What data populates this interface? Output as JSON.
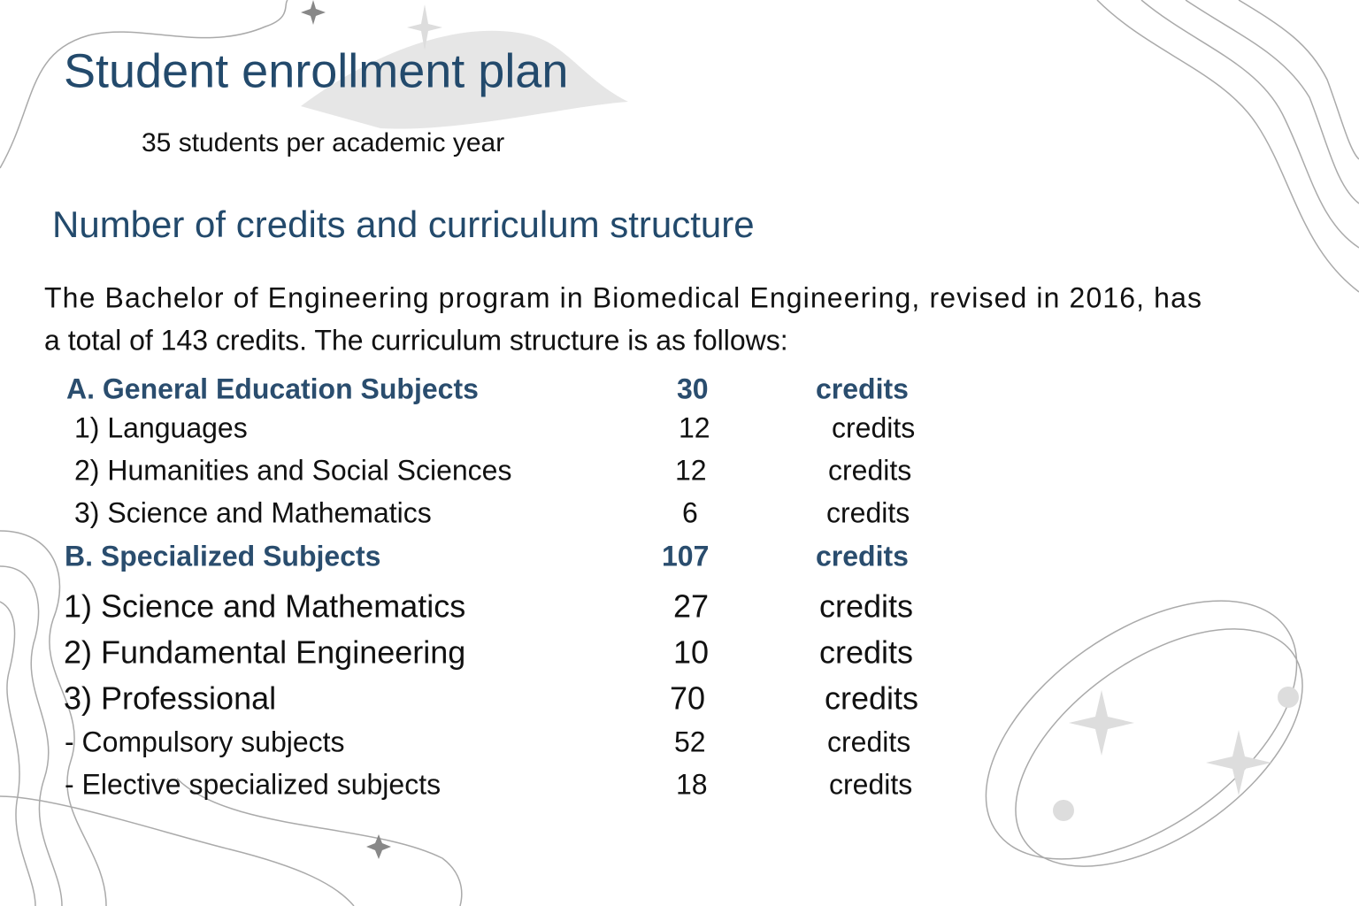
{
  "header": {
    "title": "Student enrollment plan",
    "subtitle": "35 students per academic year"
  },
  "section": {
    "heading": "Number of credits and curriculum structure",
    "paragraph": {
      "lines": [
        "The Bachelor of Engineering program in Biomedical Engineering, revised in 2016, has",
        "a total of 143 credits. The curriculum structure is as follows:"
      ]
    }
  },
  "table": {
    "rows": [
      {
        "label": "A. General Education Subjects",
        "credits": 30,
        "unit": "credits"
      },
      {
        "label": "1) Languages",
        "credits": 12,
        "unit": "credits"
      },
      {
        "label": "2) Humanities and Social Sciences",
        "credits": 12,
        "unit": "credits"
      },
      {
        "label": "3) Science and Mathematics",
        "credits": 6,
        "unit": "credits"
      },
      {
        "label": "B. Specialized Subjects",
        "credits": 107,
        "unit": "credits"
      },
      {
        "label": "1) Science and Mathematics",
        "credits": 27,
        "unit": "credits"
      },
      {
        "label": "2) Fundamental Engineering",
        "credits": 10,
        "unit": "credits"
      },
      {
        "label": "3) Professional",
        "credits": 70,
        "unit": "credits"
      },
      {
        "label": "- Compulsory subjects",
        "credits": 52,
        "unit": "credits"
      },
      {
        "label": "- Elective specialized subjects",
        "credits": 18,
        "unit": "credits"
      }
    ]
  }
}
